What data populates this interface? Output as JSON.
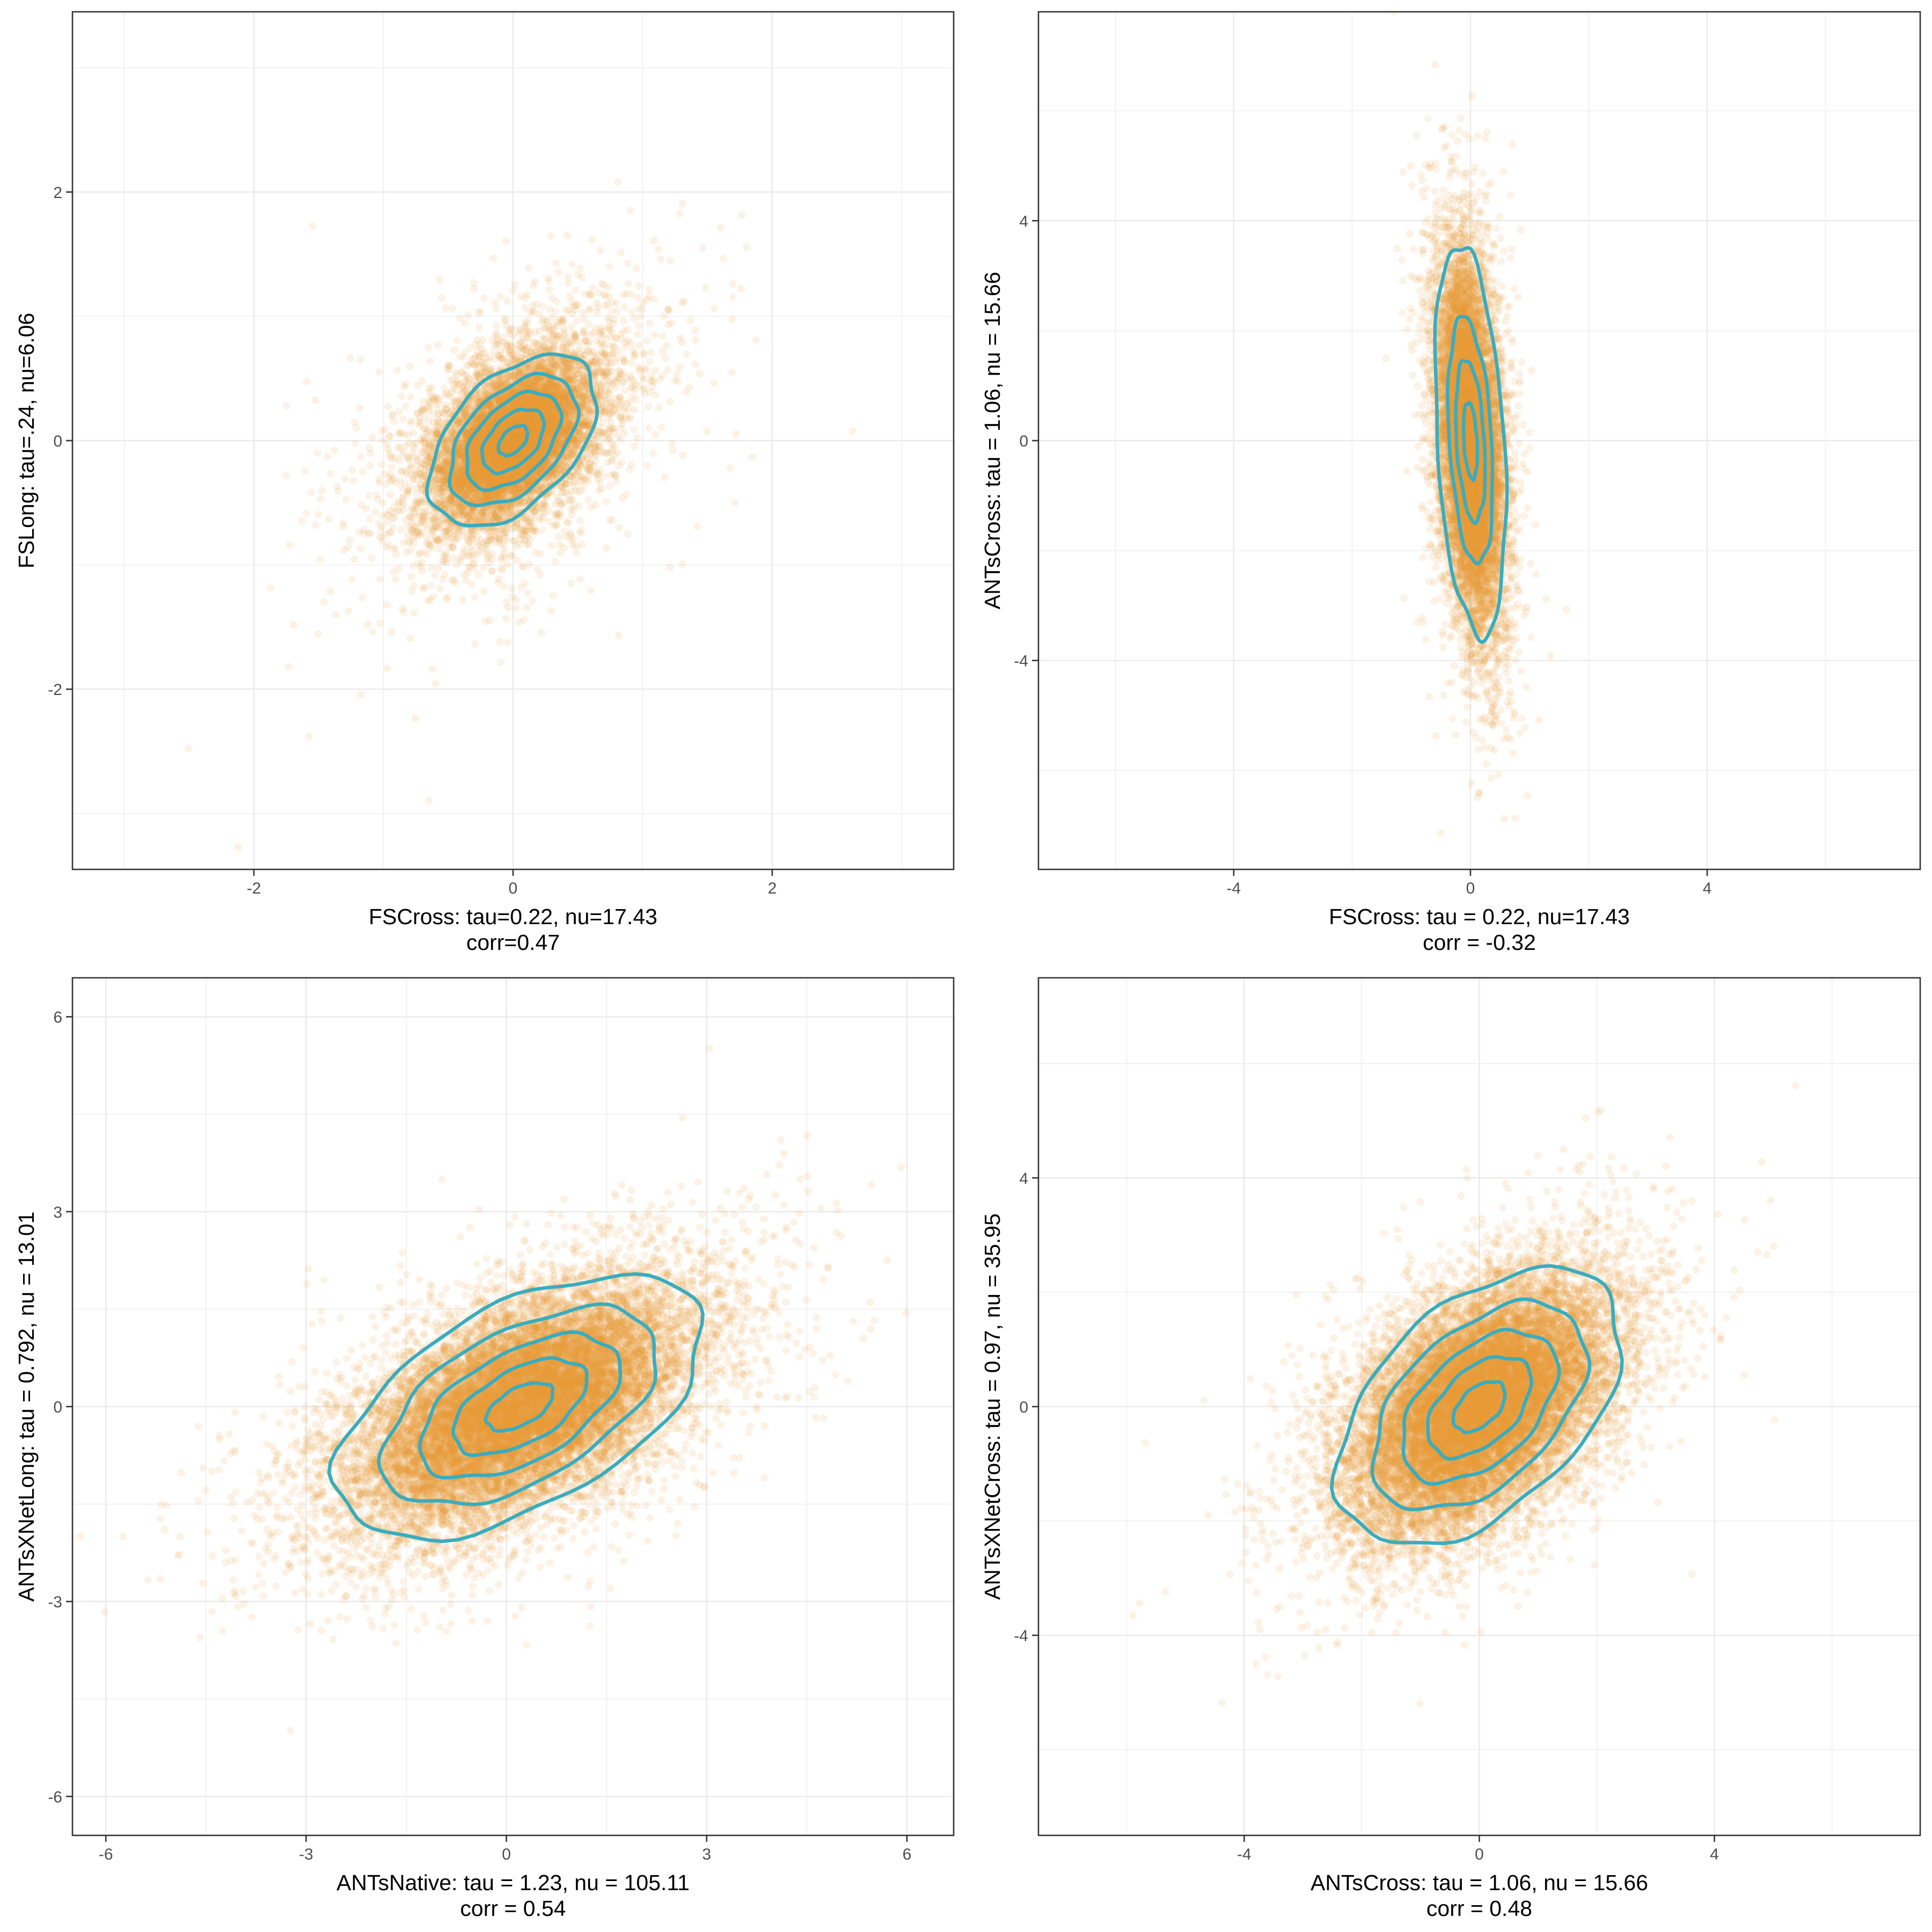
{
  "chart_data": [
    {
      "type": "scatter",
      "title": "",
      "xlabel": "FSCross: tau=0.22, nu=17.43",
      "xlabel_line2": "corr=0.47",
      "ylabel": "FSLong: tau=.24, nu=6.06",
      "xlim": [
        -3.4,
        3.4
      ],
      "ylim": [
        -3.45,
        3.45
      ],
      "xticks": [
        -2,
        0,
        2
      ],
      "xtick_labels": [
        "-2",
        "0",
        "2"
      ],
      "yticks": [
        -2,
        0,
        2
      ],
      "ytick_labels": [
        "-2",
        "0",
        "2"
      ],
      "grid": true,
      "series": [
        {
          "name": "points",
          "n": 11000,
          "center": [
            0,
            0
          ],
          "sd": [
            0.28,
            0.3
          ],
          "corr": 0.47,
          "tail_df": 5,
          "color": "#E69A33"
        }
      ],
      "contour_levels_sd": [
        0.4,
        0.85,
        1.3,
        1.75,
        2.3
      ],
      "contour_color": "#3AACBE"
    },
    {
      "type": "scatter",
      "title": "",
      "xlabel": "FSCross: tau = 0.22, nu=17.43",
      "xlabel_line2": "corr = -0.32",
      "ylabel": "ANTsCross: tau = 1.06, nu = 15.66",
      "xlim": [
        -7.3,
        7.6
      ],
      "ylim": [
        -7.8,
        7.8
      ],
      "xticks": [
        -4,
        0,
        4
      ],
      "xtick_labels": [
        "-4",
        "0",
        "4"
      ],
      "yticks": [
        -4,
        0,
        4
      ],
      "ytick_labels": [
        "-4",
        "0",
        "4"
      ],
      "grid": true,
      "series": [
        {
          "name": "points",
          "n": 11000,
          "center": [
            0,
            0
          ],
          "sd": [
            0.26,
            1.55
          ],
          "corr": -0.32,
          "tail_df": 12,
          "color": "#E69A33"
        }
      ],
      "contour_levels_sd": [
        0.45,
        0.95,
        1.45,
        2.3
      ],
      "contour_color": "#3AACBE"
    },
    {
      "type": "scatter",
      "title": "",
      "xlabel": "ANTsNative: tau = 1.23, nu = 105.11",
      "xlabel_line2": "corr = 0.54",
      "ylabel": "ANTsXNetLong: tau = 0.792, nu = 13.01",
      "xlim": [
        -6.5,
        6.7
      ],
      "ylim": [
        -6.6,
        6.6
      ],
      "xticks": [
        -6,
        -3,
        0,
        3,
        6
      ],
      "xtick_labels": [
        "-6",
        "-3",
        "0",
        "3",
        "6"
      ],
      "yticks": [
        -6,
        -3,
        0,
        3,
        6
      ],
      "ytick_labels": [
        "-6",
        "-3",
        "0",
        "3",
        "6"
      ],
      "grid": true,
      "series": [
        {
          "name": "points",
          "n": 16000,
          "center": [
            0.2,
            0
          ],
          "sd": [
            1.25,
            0.92
          ],
          "corr": 0.54,
          "tail_df": 14,
          "color": "#E69A33"
        }
      ],
      "contour_levels_sd": [
        0.4,
        0.8,
        1.2,
        1.65,
        2.2
      ],
      "contour_color": "#3AACBE"
    },
    {
      "type": "scatter",
      "title": "",
      "xlabel": "ANTsCross: tau = 1.06, nu = 15.66",
      "xlabel_line2": "corr = 0.48",
      "ylabel": "ANTsXNetCross: tau = 0.97, nu = 35.95",
      "xlim": [
        -7.5,
        7.5
      ],
      "ylim": [
        -7.5,
        7.5
      ],
      "xticks": [
        -4,
        0,
        4
      ],
      "xtick_labels": [
        "-4",
        "0",
        "4"
      ],
      "yticks": [
        -4,
        0,
        4
      ],
      "ytick_labels": [
        "-4",
        "0",
        "4"
      ],
      "grid": true,
      "series": [
        {
          "name": "points",
          "n": 16000,
          "center": [
            0,
            0
          ],
          "sd": [
            1.1,
            1.1
          ],
          "corr": 0.48,
          "tail_df": 20,
          "color": "#E69A33"
        }
      ],
      "contour_levels_sd": [
        0.4,
        0.8,
        1.2,
        1.65,
        2.2
      ],
      "contour_color": "#3AACBE"
    }
  ]
}
